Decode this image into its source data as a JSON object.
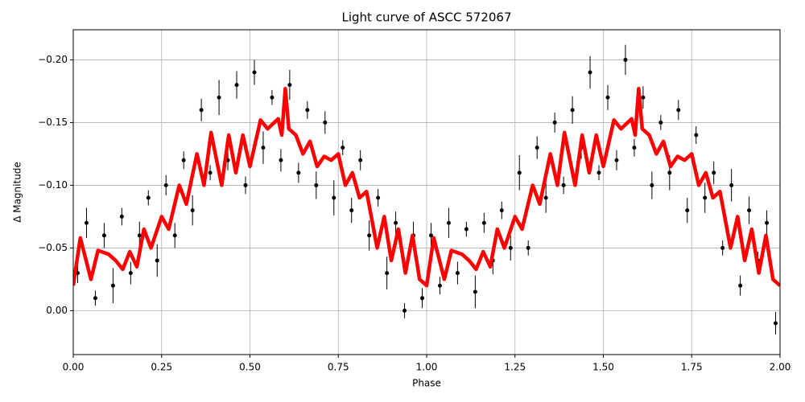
{
  "chart_data": {
    "type": "scatter",
    "title": "Light curve of ASCC 572067",
    "xlabel": "Phase",
    "ylabel": "Δ Magnitude",
    "grid": true,
    "xlim": [
      0,
      2
    ],
    "ylim": [
      0.035,
      -0.224
    ],
    "xticks": [
      {
        "value": 0,
        "label": "0.00"
      },
      {
        "value": 0.25,
        "label": "0.25"
      },
      {
        "value": 0.5,
        "label": "0.50"
      },
      {
        "value": 0.75,
        "label": "0.75"
      },
      {
        "value": 1,
        "label": "1.00"
      },
      {
        "value": 1.25,
        "label": "1.25"
      },
      {
        "value": 1.5,
        "label": "1.50"
      },
      {
        "value": 1.75,
        "label": "1.75"
      },
      {
        "value": 2,
        "label": "2.00"
      }
    ],
    "yticks": [
      {
        "value": 0,
        "label": "0.00"
      },
      {
        "value": -0.05,
        "label": "−0.05"
      },
      {
        "value": -0.1,
        "label": "−0.10"
      },
      {
        "value": -0.15,
        "label": "−0.15"
      },
      {
        "value": -0.2,
        "label": "−0.20"
      }
    ],
    "series": [
      {
        "type": "scatter",
        "color": "#000000",
        "x": [
          0.0125,
          0.0375,
          0.0625,
          0.0875,
          0.1125,
          0.1375,
          0.1625,
          0.1875,
          0.2125,
          0.2375,
          0.2625,
          0.2875,
          0.3125,
          0.3375,
          0.3625,
          0.3875,
          0.4125,
          0.4375,
          0.4625,
          0.4875,
          0.5125,
          0.5375,
          0.5625,
          0.5875,
          0.6125,
          0.6375,
          0.6625,
          0.6875,
          0.7125,
          0.7375,
          0.7625,
          0.7875,
          0.8125,
          0.8375,
          0.8625,
          0.8875,
          0.9125,
          0.9375,
          0.9625,
          0.9875,
          1.0125,
          1.0375,
          1.0625,
          1.0875,
          1.1125,
          1.1375,
          1.1625,
          1.1875,
          1.2125,
          1.2375,
          1.2625,
          1.2875,
          1.3125,
          1.3375,
          1.3625,
          1.3875,
          1.4125,
          1.4375,
          1.4625,
          1.4875,
          1.5125,
          1.5375,
          1.5625,
          1.5875,
          1.6125,
          1.6375,
          1.6625,
          1.6875,
          1.7125,
          1.7375,
          1.7625,
          1.7875,
          1.8125,
          1.8375,
          1.8625,
          1.8875,
          1.9125,
          1.9375,
          1.9625,
          1.9875
        ],
        "values": [
          -0.03,
          -0.07,
          -0.01,
          -0.06,
          -0.02,
          -0.075,
          -0.03,
          -0.06,
          -0.09,
          -0.04,
          -0.1,
          -0.06,
          -0.12,
          -0.08,
          -0.16,
          -0.11,
          -0.17,
          -0.12,
          -0.18,
          -0.1,
          -0.19,
          -0.13,
          -0.17,
          -0.12,
          -0.18,
          -0.11,
          -0.16,
          -0.1,
          -0.15,
          -0.09,
          -0.13,
          -0.08,
          -0.12,
          -0.06,
          -0.09,
          -0.03,
          -0.07,
          0.0,
          -0.06,
          -0.01,
          -0.06,
          -0.02,
          -0.07,
          -0.03,
          -0.065,
          -0.015,
          -0.07,
          -0.04,
          -0.08,
          -0.05,
          -0.11,
          -0.05,
          -0.13,
          -0.09,
          -0.15,
          -0.1,
          -0.16,
          -0.13,
          -0.19,
          -0.11,
          -0.17,
          -0.12,
          -0.2,
          -0.13,
          -0.17,
          -0.1,
          -0.15,
          -0.11,
          -0.16,
          -0.08,
          -0.14,
          -0.09,
          -0.11,
          -0.05,
          -0.1,
          -0.02,
          -0.08,
          -0.04,
          -0.07,
          0.01
        ],
        "errors": [
          0.008,
          0.012,
          0.006,
          0.01,
          0.014,
          0.007,
          0.009,
          0.011,
          0.006,
          0.013,
          0.008,
          0.01,
          0.007,
          0.012,
          0.009,
          0.006,
          0.014,
          0.008,
          0.011,
          0.007,
          0.01,
          0.013,
          0.006,
          0.009,
          0.012,
          0.008,
          0.007,
          0.011,
          0.009,
          0.014,
          0.006,
          0.01,
          0.008,
          0.012,
          0.007,
          0.013,
          0.009,
          0.006,
          0.011,
          0.008,
          0.01,
          0.007,
          0.012,
          0.009,
          0.006,
          0.013,
          0.008,
          0.011,
          0.007,
          0.01,
          0.014,
          0.006,
          0.009,
          0.012,
          0.008,
          0.007,
          0.011,
          0.009,
          0.013,
          0.006,
          0.01,
          0.008,
          0.012,
          0.007,
          0.009,
          0.011,
          0.006,
          0.014,
          0.008,
          0.01,
          0.007,
          0.012,
          0.009,
          0.006,
          0.013,
          0.008,
          0.011,
          0.007,
          0.01,
          0.009
        ]
      },
      {
        "type": "line",
        "color": "#ff0000",
        "x": [
          0,
          0.02,
          0.05,
          0.07,
          0.1,
          0.12,
          0.14,
          0.16,
          0.18,
          0.2,
          0.22,
          0.25,
          0.27,
          0.3,
          0.32,
          0.35,
          0.37,
          0.39,
          0.42,
          0.44,
          0.46,
          0.48,
          0.5,
          0.53,
          0.55,
          0.58,
          0.59,
          0.6,
          0.61,
          0.63,
          0.65,
          0.67,
          0.69,
          0.71,
          0.73,
          0.75,
          0.77,
          0.79,
          0.81,
          0.83,
          0.86,
          0.88,
          0.9,
          0.92,
          0.94,
          0.96,
          0.98,
          1.0,
          1.02,
          1.05,
          1.07,
          1.1,
          1.12,
          1.14,
          1.16,
          1.18,
          1.2,
          1.22,
          1.25,
          1.27,
          1.3,
          1.32,
          1.35,
          1.37,
          1.39,
          1.42,
          1.44,
          1.46,
          1.48,
          1.5,
          1.53,
          1.55,
          1.58,
          1.59,
          1.6,
          1.61,
          1.63,
          1.65,
          1.67,
          1.69,
          1.71,
          1.73,
          1.75,
          1.77,
          1.79,
          1.81,
          1.83,
          1.86,
          1.88,
          1.9,
          1.92,
          1.94,
          1.96,
          1.98,
          2.0
        ],
        "values": [
          -0.02,
          -0.058,
          -0.025,
          -0.048,
          -0.045,
          -0.04,
          -0.033,
          -0.047,
          -0.035,
          -0.065,
          -0.05,
          -0.075,
          -0.065,
          -0.1,
          -0.085,
          -0.125,
          -0.1,
          -0.142,
          -0.1,
          -0.14,
          -0.11,
          -0.14,
          -0.115,
          -0.152,
          -0.145,
          -0.153,
          -0.14,
          -0.177,
          -0.145,
          -0.14,
          -0.125,
          -0.135,
          -0.115,
          -0.123,
          -0.12,
          -0.125,
          -0.1,
          -0.11,
          -0.09,
          -0.095,
          -0.05,
          -0.075,
          -0.04,
          -0.065,
          -0.03,
          -0.06,
          -0.025,
          -0.02,
          -0.058,
          -0.025,
          -0.048,
          -0.045,
          -0.04,
          -0.033,
          -0.047,
          -0.035,
          -0.065,
          -0.05,
          -0.075,
          -0.065,
          -0.1,
          -0.085,
          -0.125,
          -0.1,
          -0.142,
          -0.1,
          -0.14,
          -0.11,
          -0.14,
          -0.115,
          -0.152,
          -0.145,
          -0.153,
          -0.14,
          -0.177,
          -0.145,
          -0.14,
          -0.125,
          -0.135,
          -0.115,
          -0.123,
          -0.12,
          -0.125,
          -0.1,
          -0.11,
          -0.09,
          -0.095,
          -0.05,
          -0.075,
          -0.04,
          -0.065,
          -0.03,
          -0.06,
          -0.025,
          -0.02
        ]
      }
    ]
  }
}
